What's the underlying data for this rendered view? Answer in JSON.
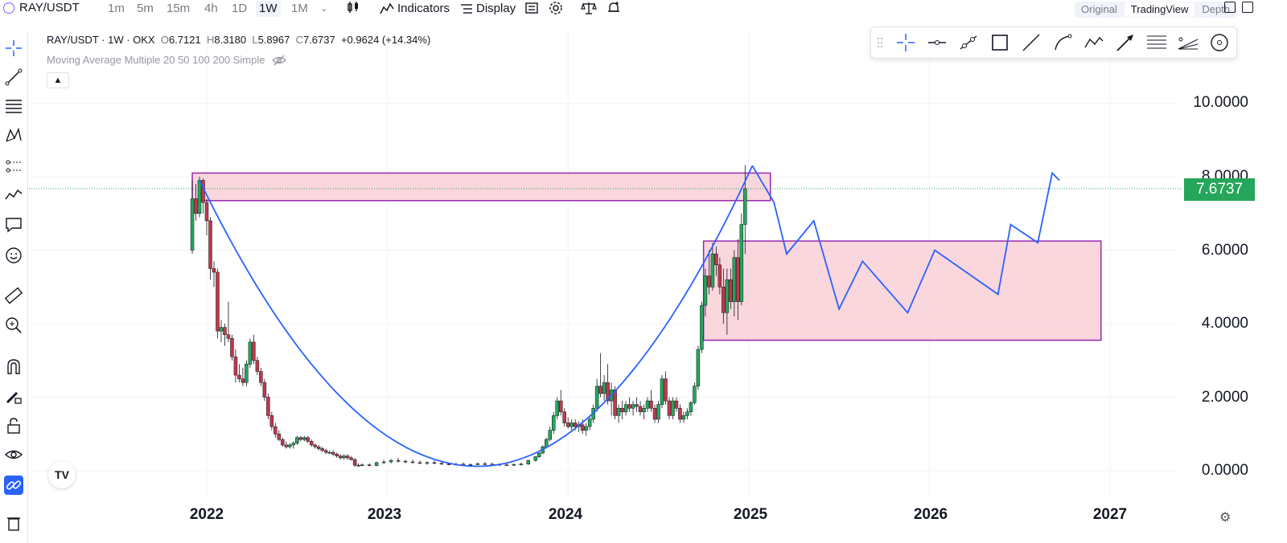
{
  "header": {
    "symbol": "RAY/USDT",
    "timeframes": [
      "1m",
      "5m",
      "15m",
      "4h",
      "1D",
      "1W",
      "1M"
    ],
    "active_timeframe": "1W",
    "indicators_label": "Indicators",
    "display_label": "Display",
    "views": [
      "Original",
      "TradingView",
      "Depth"
    ],
    "active_view": "TradingView"
  },
  "legend": {
    "title": "RAY/USDT · 1W · OKX",
    "open_label": "O",
    "open": "6.7121",
    "high_label": "H",
    "high": "8.3180",
    "low_label": "L",
    "low": "5.8967",
    "close_label": "C",
    "close": "7.6737",
    "change": "+0.9624 (+14.34%)",
    "ma": "Moving Average Multiple 20 50 100 200 Simple"
  },
  "price_axis": {
    "ticks": [
      "10.0000",
      "8.0000",
      "6.0000",
      "4.0000",
      "2.0000",
      "0.0000"
    ],
    "current": "7.6737",
    "current_color": "#26a65b"
  },
  "time_axis": {
    "ticks": [
      "2022",
      "2023",
      "2024",
      "2025",
      "2026",
      "2027"
    ]
  },
  "colors": {
    "up": "#26a65b",
    "down": "#c0394b",
    "zone_fill": "#f8c8d2",
    "zone_border": "#9c27b0",
    "projection": "#2962ff"
  },
  "chart_data": {
    "type": "candlestick",
    "title": "RAY/USDT · 1W · OKX",
    "ylim": [
      -0.3,
      11.5
    ],
    "xlim": [
      2021.5,
      2027.5
    ],
    "last_price": 7.6737,
    "candles": [
      [
        2021.92,
        6.0,
        7.9,
        5.9,
        7.4
      ],
      [
        2021.94,
        7.4,
        7.8,
        6.8,
        7.0
      ],
      [
        2021.96,
        7.0,
        8.0,
        6.9,
        7.9
      ],
      [
        2021.98,
        7.9,
        7.95,
        7.0,
        7.3
      ],
      [
        2022.0,
        7.3,
        7.4,
        6.4,
        6.8
      ],
      [
        2022.02,
        6.8,
        6.9,
        5.2,
        5.5
      ],
      [
        2022.04,
        5.5,
        5.7,
        5.0,
        5.4
      ],
      [
        2022.06,
        5.4,
        5.5,
        3.6,
        3.8
      ],
      [
        2022.08,
        3.8,
        4.1,
        3.5,
        3.9
      ],
      [
        2022.1,
        3.9,
        4.0,
        3.4,
        3.7
      ],
      [
        2022.12,
        3.7,
        4.6,
        3.5,
        3.6
      ],
      [
        2022.14,
        3.6,
        3.7,
        3.0,
        3.1
      ],
      [
        2022.16,
        3.1,
        3.3,
        2.4,
        2.6
      ],
      [
        2022.18,
        2.6,
        2.9,
        2.4,
        2.5
      ],
      [
        2022.2,
        2.5,
        2.8,
        2.3,
        2.4
      ],
      [
        2022.22,
        2.4,
        3.0,
        2.3,
        2.9
      ],
      [
        2022.24,
        2.9,
        3.6,
        2.8,
        3.5
      ],
      [
        2022.26,
        3.5,
        3.7,
        2.9,
        3.0
      ],
      [
        2022.28,
        3.0,
        3.1,
        2.6,
        2.7
      ],
      [
        2022.3,
        2.7,
        2.8,
        2.3,
        2.4
      ],
      [
        2022.32,
        2.4,
        2.5,
        1.9,
        2.0
      ],
      [
        2022.34,
        2.0,
        2.1,
        1.4,
        1.5
      ],
      [
        2022.36,
        1.5,
        1.6,
        1.1,
        1.2
      ],
      [
        2022.38,
        1.2,
        1.3,
        0.9,
        1.0
      ],
      [
        2022.4,
        1.0,
        1.1,
        0.8,
        0.85
      ],
      [
        2022.42,
        0.85,
        0.9,
        0.65,
        0.7
      ],
      [
        2022.44,
        0.7,
        0.8,
        0.6,
        0.65
      ],
      [
        2022.46,
        0.65,
        0.75,
        0.6,
        0.7
      ],
      [
        2022.48,
        0.7,
        0.8,
        0.6,
        0.75
      ],
      [
        2022.5,
        0.75,
        0.95,
        0.7,
        0.9
      ],
      [
        2022.52,
        0.9,
        0.95,
        0.8,
        0.85
      ],
      [
        2022.54,
        0.85,
        0.95,
        0.8,
        0.9
      ],
      [
        2022.56,
        0.9,
        0.95,
        0.75,
        0.8
      ],
      [
        2022.58,
        0.8,
        0.85,
        0.65,
        0.7
      ],
      [
        2022.6,
        0.7,
        0.75,
        0.6,
        0.65
      ],
      [
        2022.62,
        0.65,
        0.7,
        0.55,
        0.6
      ],
      [
        2022.64,
        0.6,
        0.65,
        0.5,
        0.55
      ],
      [
        2022.66,
        0.55,
        0.6,
        0.45,
        0.5
      ],
      [
        2022.68,
        0.5,
        0.55,
        0.45,
        0.5
      ],
      [
        2022.7,
        0.5,
        0.55,
        0.4,
        0.45
      ],
      [
        2022.72,
        0.45,
        0.5,
        0.35,
        0.4
      ],
      [
        2022.74,
        0.4,
        0.45,
        0.3,
        0.35
      ],
      [
        2022.76,
        0.35,
        0.45,
        0.3,
        0.4
      ],
      [
        2022.78,
        0.4,
        0.45,
        0.3,
        0.35
      ],
      [
        2022.8,
        0.35,
        0.4,
        0.28,
        0.3
      ],
      [
        2022.82,
        0.3,
        0.35,
        0.1,
        0.15
      ],
      [
        2022.84,
        0.15,
        0.2,
        0.1,
        0.14
      ],
      [
        2022.86,
        0.14,
        0.2,
        0.12,
        0.16
      ],
      [
        2022.9,
        0.16,
        0.2,
        0.12,
        0.14
      ],
      [
        2022.94,
        0.14,
        0.25,
        0.12,
        0.22
      ],
      [
        2022.98,
        0.22,
        0.3,
        0.18,
        0.24
      ],
      [
        2023.02,
        0.24,
        0.32,
        0.2,
        0.28
      ],
      [
        2023.06,
        0.28,
        0.35,
        0.22,
        0.26
      ],
      [
        2023.1,
        0.26,
        0.3,
        0.2,
        0.24
      ],
      [
        2023.14,
        0.24,
        0.3,
        0.2,
        0.22
      ],
      [
        2023.18,
        0.22,
        0.28,
        0.18,
        0.2
      ],
      [
        2023.22,
        0.2,
        0.26,
        0.16,
        0.22
      ],
      [
        2023.26,
        0.22,
        0.28,
        0.18,
        0.2
      ],
      [
        2023.3,
        0.2,
        0.24,
        0.16,
        0.18
      ],
      [
        2023.34,
        0.18,
        0.22,
        0.15,
        0.17
      ],
      [
        2023.38,
        0.17,
        0.22,
        0.14,
        0.18
      ],
      [
        2023.42,
        0.18,
        0.22,
        0.15,
        0.16
      ],
      [
        2023.46,
        0.16,
        0.2,
        0.14,
        0.17
      ],
      [
        2023.5,
        0.17,
        0.22,
        0.15,
        0.19
      ],
      [
        2023.54,
        0.19,
        0.24,
        0.16,
        0.18
      ],
      [
        2023.58,
        0.18,
        0.22,
        0.15,
        0.17
      ],
      [
        2023.62,
        0.17,
        0.2,
        0.14,
        0.16
      ],
      [
        2023.66,
        0.16,
        0.2,
        0.13,
        0.15
      ],
      [
        2023.7,
        0.15,
        0.2,
        0.13,
        0.17
      ],
      [
        2023.74,
        0.17,
        0.22,
        0.14,
        0.18
      ],
      [
        2023.78,
        0.18,
        0.3,
        0.16,
        0.28
      ],
      [
        2023.82,
        0.28,
        0.4,
        0.25,
        0.38
      ],
      [
        2023.84,
        0.38,
        0.5,
        0.35,
        0.48
      ],
      [
        2023.86,
        0.48,
        0.7,
        0.45,
        0.65
      ],
      [
        2023.88,
        0.65,
        0.9,
        0.6,
        0.85
      ],
      [
        2023.9,
        0.85,
        1.2,
        0.8,
        1.1
      ],
      [
        2023.92,
        1.1,
        1.6,
        1.0,
        1.5
      ],
      [
        2023.94,
        1.5,
        2.0,
        1.4,
        1.9
      ],
      [
        2023.96,
        1.9,
        2.2,
        1.5,
        1.6
      ],
      [
        2023.98,
        1.6,
        1.7,
        1.2,
        1.3
      ],
      [
        2024.0,
        1.3,
        1.45,
        1.15,
        1.2
      ],
      [
        2024.02,
        1.2,
        1.4,
        1.1,
        1.3
      ],
      [
        2024.04,
        1.3,
        1.4,
        1.1,
        1.2
      ],
      [
        2024.06,
        1.2,
        1.35,
        1.05,
        1.25
      ],
      [
        2024.08,
        1.25,
        1.4,
        1.0,
        1.1
      ],
      [
        2024.1,
        1.1,
        1.3,
        0.95,
        1.2
      ],
      [
        2024.12,
        1.2,
        1.5,
        1.1,
        1.4
      ],
      [
        2024.14,
        1.4,
        1.8,
        1.3,
        1.7
      ],
      [
        2024.16,
        1.7,
        2.5,
        1.6,
        2.3
      ],
      [
        2024.18,
        2.3,
        3.2,
        2.0,
        2.1
      ],
      [
        2024.2,
        2.1,
        2.6,
        1.9,
        2.4
      ],
      [
        2024.22,
        2.4,
        2.9,
        1.8,
        1.9
      ],
      [
        2024.24,
        1.9,
        2.4,
        1.5,
        2.2
      ],
      [
        2024.26,
        2.2,
        2.3,
        1.4,
        1.5
      ],
      [
        2024.28,
        1.5,
        1.8,
        1.3,
        1.7
      ],
      [
        2024.3,
        1.7,
        1.9,
        1.4,
        1.6
      ],
      [
        2024.32,
        1.6,
        1.9,
        1.5,
        1.8
      ],
      [
        2024.34,
        1.8,
        2.0,
        1.6,
        1.7
      ],
      [
        2024.36,
        1.7,
        1.9,
        1.5,
        1.8
      ],
      [
        2024.38,
        1.8,
        2.0,
        1.6,
        1.75
      ],
      [
        2024.4,
        1.75,
        1.9,
        1.5,
        1.6
      ],
      [
        2024.42,
        1.6,
        1.8,
        1.4,
        1.7
      ],
      [
        2024.44,
        1.7,
        2.0,
        1.6,
        1.9
      ],
      [
        2024.46,
        1.9,
        2.2,
        1.6,
        1.7
      ],
      [
        2024.48,
        1.7,
        1.8,
        1.3,
        1.4
      ],
      [
        2024.5,
        1.4,
        1.9,
        1.3,
        1.8
      ],
      [
        2024.52,
        1.8,
        2.6,
        1.7,
        2.5
      ],
      [
        2024.54,
        2.5,
        2.7,
        1.8,
        1.9
      ],
      [
        2024.56,
        1.9,
        2.0,
        1.4,
        1.5
      ],
      [
        2024.58,
        1.5,
        2.0,
        1.4,
        1.9
      ],
      [
        2024.6,
        1.9,
        2.0,
        1.6,
        1.7
      ],
      [
        2024.62,
        1.7,
        1.8,
        1.3,
        1.4
      ],
      [
        2024.64,
        1.4,
        1.6,
        1.3,
        1.5
      ],
      [
        2024.66,
        1.5,
        1.7,
        1.4,
        1.6
      ],
      [
        2024.68,
        1.6,
        1.9,
        1.5,
        1.85
      ],
      [
        2024.7,
        1.85,
        2.4,
        1.8,
        2.3
      ],
      [
        2024.72,
        2.3,
        3.4,
        2.2,
        3.3
      ],
      [
        2024.74,
        3.3,
        4.6,
        3.2,
        4.5
      ],
      [
        2024.76,
        4.5,
        5.5,
        4.2,
        5.3
      ],
      [
        2024.78,
        5.3,
        6.0,
        4.8,
        5.0
      ],
      [
        2024.8,
        5.0,
        6.2,
        4.9,
        5.9
      ],
      [
        2024.82,
        5.9,
        6.1,
        5.3,
        5.6
      ],
      [
        2024.84,
        5.6,
        5.8,
        4.8,
        5.0
      ],
      [
        2024.86,
        5.0,
        5.5,
        4.0,
        4.3
      ],
      [
        2024.88,
        4.3,
        5.5,
        3.7,
        5.2
      ],
      [
        2024.9,
        5.2,
        5.5,
        4.4,
        4.6
      ],
      [
        2024.92,
        4.6,
        6.0,
        4.2,
        5.8
      ],
      [
        2024.94,
        5.8,
        6.3,
        4.1,
        4.6
      ],
      [
        2024.96,
        4.6,
        7.0,
        4.5,
        6.7
      ],
      [
        2024.98,
        6.7,
        8.318,
        5.8967,
        7.6737
      ]
    ],
    "zones": [
      {
        "x0": 2021.92,
        "x1": 2025.12,
        "y0": 7.35,
        "y1": 8.1
      },
      {
        "x0": 2024.75,
        "x1": 2026.95,
        "y0": 3.55,
        "y1": 6.25
      }
    ],
    "projection_path": [
      [
        2021.96,
        7.9
      ],
      [
        2025.02,
        8.3
      ],
      [
        2025.14,
        7.3
      ],
      [
        2025.21,
        5.9
      ],
      [
        2025.36,
        6.8
      ],
      [
        2025.5,
        4.4
      ],
      [
        2025.63,
        5.7
      ],
      [
        2025.88,
        4.3
      ],
      [
        2026.03,
        6.0
      ],
      [
        2026.38,
        4.8
      ],
      [
        2026.45,
        6.7
      ],
      [
        2026.6,
        6.2
      ],
      [
        2026.68,
        8.1
      ],
      [
        2026.72,
        7.9
      ]
    ]
  }
}
